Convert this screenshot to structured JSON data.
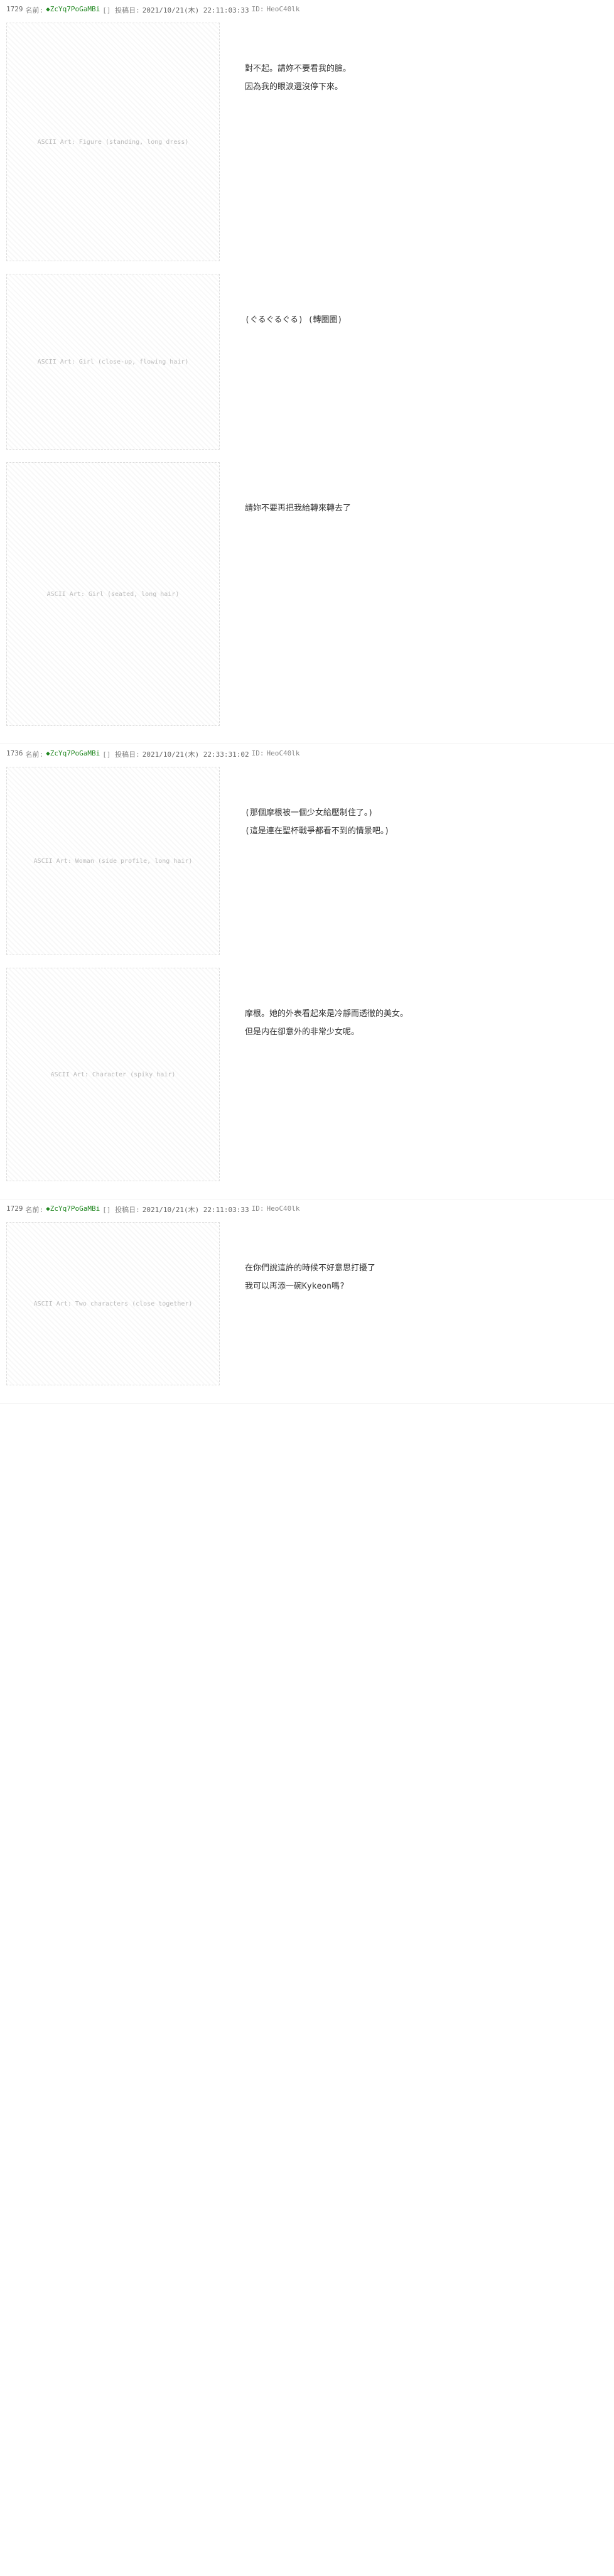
{
  "posts": [
    {
      "number": "1729",
      "name_prefix": "名前:",
      "name": "◆ZcYq7PoGaMBi",
      "date_prefix": "[] 投稿日:",
      "date": "2021/10/21(木) 22:11:03:33",
      "id_prefix": "ID:",
      "id": "HeoC40lk",
      "panels": [
        {
          "aa_label": "ASCII Art: Figure (standing, long dress)",
          "aa_height": 380,
          "dialogue": [
            "對不起。請妳不要看我的臉。",
            "因為我的眼淚還沒停下來。"
          ]
        },
        {
          "aa_label": "ASCII Art: Girl (close-up, flowing hair)",
          "aa_height": 280,
          "dialogue": [
            "(ぐるぐるぐる) (轉圈圈)"
          ]
        },
        {
          "aa_label": "ASCII Art: Girl (seated, long hair)",
          "aa_height": 420,
          "dialogue": [
            "請妳不要再把我給轉來轉去了"
          ]
        }
      ]
    },
    {
      "number": "1736",
      "name_prefix": "名前:",
      "name": "◆ZcYq7PoGaMBi",
      "date_prefix": "[] 投稿日:",
      "date": "2021/10/21(木) 22:33:31:02",
      "id_prefix": "ID:",
      "id": "HeoC40lk",
      "panels": [
        {
          "aa_label": "ASCII Art: Woman (side profile, long hair)",
          "aa_height": 300,
          "dialogue": [
            "(那個摩根被一個少女給壓制住了。)",
            "(這是連在聖杯戰爭都看不到的情景吧。)"
          ]
        },
        {
          "aa_label": "ASCII Art: Character (spiky hair)",
          "aa_height": 340,
          "dialogue": [
            "摩根。她的外表看起來是冷靜而透徹的美女。",
            "但是内在卻意外的非常少女呢。"
          ]
        }
      ]
    },
    {
      "number": "1729",
      "name_prefix": "名前:",
      "name": "◆ZcYq7PoGaMBi",
      "date_prefix": "[] 投稿日:",
      "date": "2021/10/21(木) 22:11:03:33",
      "id_prefix": "ID:",
      "id": "HeoC40lk",
      "panels": [
        {
          "aa_label": "ASCII Art: Two characters (close together)",
          "aa_height": 260,
          "dialogue": [
            "在你們說這許的時候不好意思打擾了",
            "我可以再添一碗Kykeon嗎?"
          ]
        }
      ]
    }
  ],
  "colors": {
    "background": "#ffffff",
    "text": "#333333",
    "meta": "#888888",
    "name": "#228822",
    "aa": "#999999"
  }
}
